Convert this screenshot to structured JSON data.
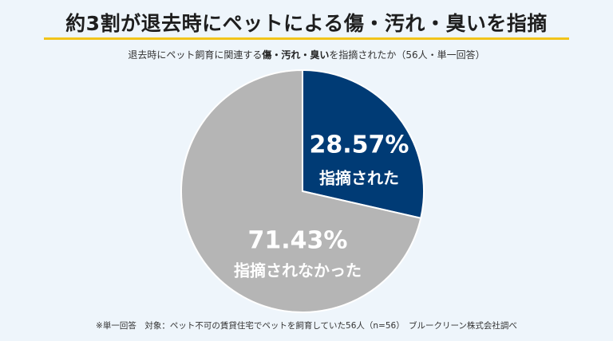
{
  "title": "約3割が退去時にペットによる傷・汚れ・臭いを指摘",
  "subtitle": {
    "part1": "退去時にペット飼育に関連する",
    "bold": "傷・汚れ・臭い",
    "part2": "を指摘されたか（56人・単一回答）"
  },
  "footnote": "※単一回答　対象：ペット不可の賃貸住宅でペットを飼育していた56人（n=56）　ブルークリーン株式会社調べ",
  "colors": {
    "accent": "#f2c419",
    "primary": "#003b75",
    "secondary": "#b5b5b5"
  },
  "chart_data": {
    "type": "pie",
    "slices": [
      {
        "label": "指摘された",
        "value": 28.57,
        "display": "28.57%",
        "color": "#003b75"
      },
      {
        "label": "指摘されなかった",
        "value": 71.43,
        "display": "71.43%",
        "color": "#b5b5b5"
      }
    ]
  }
}
